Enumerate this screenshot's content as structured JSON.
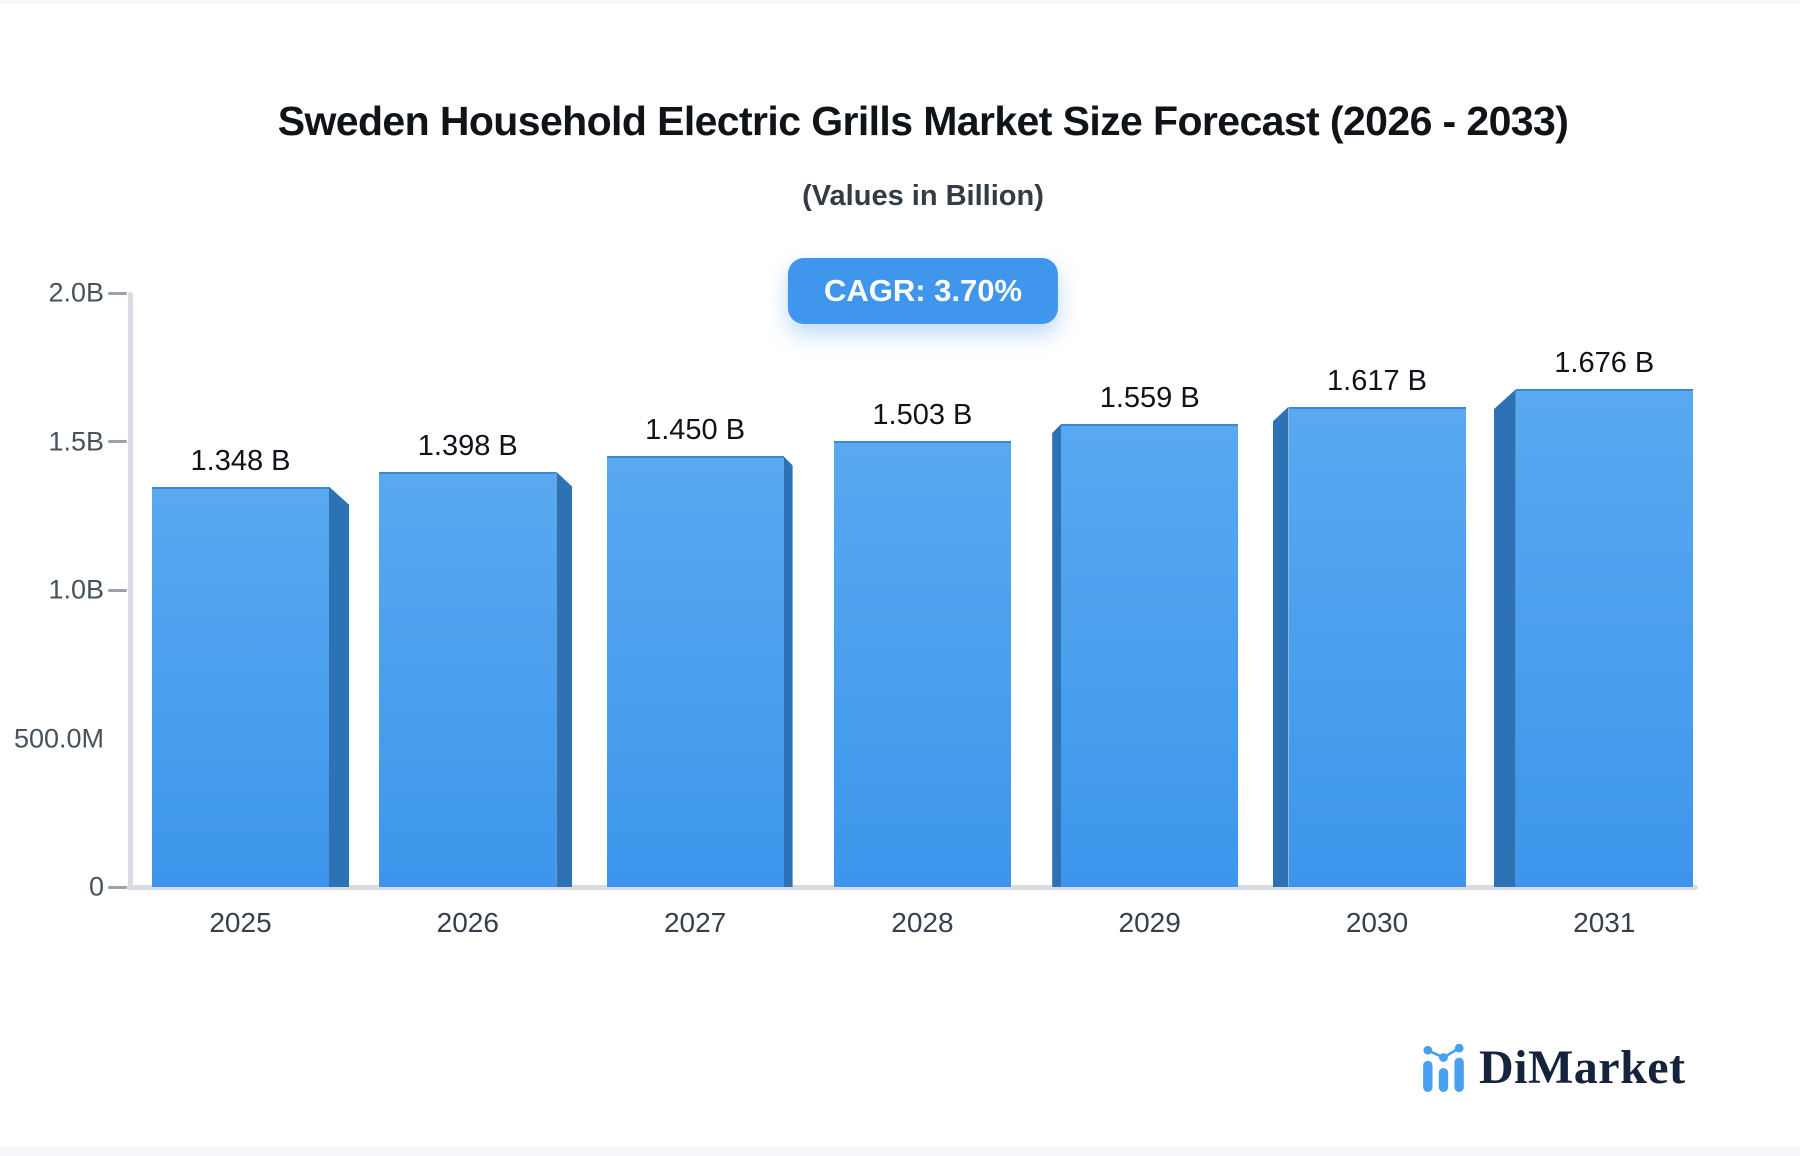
{
  "page": {
    "title": "Sweden Household Electric Grills Market Size Forecast (2026 - 2033)",
    "subtitle": "(Values in Billion)",
    "cagr_label": "CAGR: 3.70%",
    "brand": "DiMarket"
  },
  "colors": {
    "bar_face_top": "#58a9f0",
    "bar_face_bottom": "#3d96ec",
    "bar_side": "#2c72b4",
    "badge_background": "#3f96ec",
    "badge_text": "#ffffff",
    "axis_line": "#d9dde3",
    "tick_dash": "#9aa3ad",
    "tick_text": "#47525f",
    "title_text": "#101419",
    "logo_blue": "#4aa0f0",
    "logo_navy": "#16233d"
  },
  "chart_data": {
    "type": "bar",
    "title": "Sweden Household Electric Grills Market Size Forecast (2026 - 2033)",
    "subtitle": "(Values in Billion)",
    "annotation": "CAGR: 3.70%",
    "unit": "Billion",
    "categories": [
      "2025",
      "2026",
      "2027",
      "2028",
      "2029",
      "2030",
      "2031"
    ],
    "values": [
      1.348,
      1.398,
      1.45,
      1.503,
      1.559,
      1.617,
      1.676
    ],
    "bar_labels": [
      "1.348 B",
      "1.398 B",
      "1.450 B",
      "1.503 B",
      "1.559 B",
      "1.617 B",
      "1.676 B"
    ],
    "ylim": [
      0,
      2.0
    ],
    "y_ticks": [
      {
        "label": "2.0B",
        "value": 2.0,
        "dash": true
      },
      {
        "label": "1.5B",
        "value": 1.5,
        "dash": true
      },
      {
        "label": "1.0B",
        "value": 1.0,
        "dash": true
      },
      {
        "label": "500.0M",
        "value": 0.5,
        "dash": false
      },
      {
        "label": "0",
        "value": 0,
        "dash": true
      }
    ],
    "grid": false,
    "legend": false
  }
}
